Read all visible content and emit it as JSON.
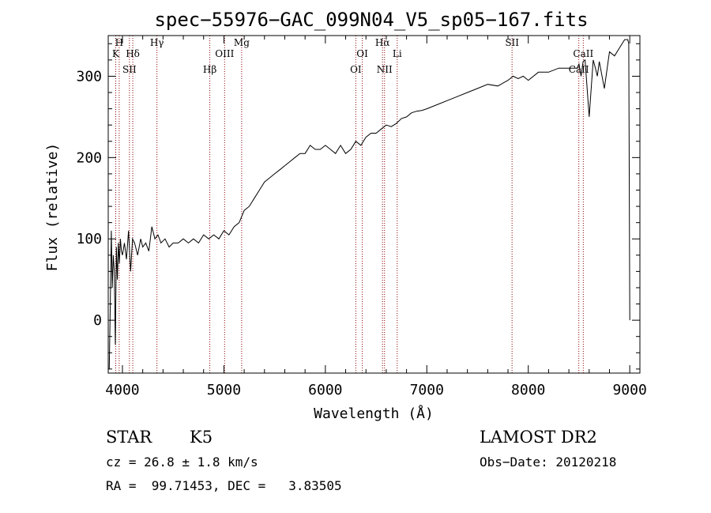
{
  "chart_data": {
    "type": "line",
    "title": "spec−55976−GAC_099N04_V5_sp05−167.fits",
    "xlabel": "Wavelength (Å)",
    "ylabel": "Flux (relative)",
    "xlim": [
      3860,
      9100
    ],
    "ylim": [
      -65,
      350
    ],
    "xticks": [
      4000,
      5000,
      6000,
      7000,
      8000,
      9000
    ],
    "yticks": [
      0,
      100,
      200,
      300
    ],
    "grid": false,
    "series": [
      {
        "x": [
          3870,
          3880,
          3890,
          3900,
          3910,
          3920,
          3930,
          3940,
          3950,
          3960,
          3970,
          3980,
          3990,
          4000,
          4020,
          4040,
          4060,
          4080,
          4100,
          4120,
          4150,
          4180,
          4200,
          4230,
          4260,
          4290,
          4320,
          4350,
          4380,
          4420,
          4460,
          4500,
          4550,
          4600,
          4650,
          4700,
          4750,
          4800,
          4850,
          4900,
          4950,
          5000,
          5050,
          5100,
          5150,
          5200,
          5250,
          5300,
          5350,
          5400,
          5450,
          5500,
          5550,
          5600,
          5650,
          5700,
          5750,
          5800,
          5850,
          5900,
          5950,
          6000,
          6050,
          6100,
          6150,
          6200,
          6250,
          6300,
          6350,
          6400,
          6450,
          6500,
          6550,
          6600,
          6650,
          6700,
          6750,
          6800,
          6850,
          6900,
          6950,
          7000,
          7100,
          7200,
          7300,
          7400,
          7500,
          7600,
          7700,
          7800,
          7850,
          7900,
          7950,
          8000,
          8100,
          8200,
          8300,
          8400,
          8480,
          8500,
          8520,
          8540,
          8560,
          8600,
          8640,
          8662,
          8680,
          8700,
          8750,
          8800,
          8850,
          8900,
          8950,
          8980,
          8990,
          9000
        ],
        "y": [
          -60,
          20,
          110,
          40,
          80,
          60,
          -30,
          90,
          50,
          95,
          70,
          100,
          85,
          80,
          95,
          75,
          110,
          60,
          100,
          95,
          80,
          100,
          90,
          95,
          85,
          115,
          100,
          105,
          95,
          100,
          90,
          95,
          95,
          100,
          95,
          100,
          95,
          105,
          100,
          105,
          100,
          110,
          105,
          115,
          120,
          135,
          140,
          150,
          160,
          170,
          175,
          180,
          185,
          190,
          195,
          200,
          205,
          205,
          215,
          210,
          210,
          215,
          210,
          205,
          215,
          205,
          210,
          220,
          215,
          225,
          230,
          230,
          235,
          240,
          238,
          242,
          248,
          250,
          255,
          257,
          258,
          260,
          265,
          270,
          275,
          280,
          285,
          290,
          288,
          295,
          300,
          297,
          300,
          295,
          305,
          305,
          310,
          310,
          310,
          315,
          300,
          318,
          320,
          250,
          320,
          310,
          300,
          318,
          285,
          330,
          325,
          335,
          345,
          345,
          340,
          0
        ]
      }
    ],
    "lines": [
      {
        "label": "K",
        "wavelength": 3934
      },
      {
        "label": "H",
        "wavelength": 3968
      },
      {
        "label": "SII",
        "wavelength": 4069
      },
      {
        "label": "Hδ",
        "wavelength": 4102
      },
      {
        "label": "Hγ",
        "wavelength": 4340
      },
      {
        "label": "Hβ",
        "wavelength": 4861
      },
      {
        "label": "OIII",
        "wavelength": 5007
      },
      {
        "label": "Mg",
        "wavelength": 5175
      },
      {
        "label": "OI",
        "wavelength": 6300
      },
      {
        "label": "OI",
        "wavelength": 6364
      },
      {
        "label": "Hα",
        "wavelength": 6563
      },
      {
        "label": "NII",
        "wavelength": 6583
      },
      {
        "label": "Li",
        "wavelength": 6708
      },
      {
        "label": "SII",
        "wavelength": 7840
      },
      {
        "label": "CaII",
        "wavelength": 8498
      },
      {
        "label": "CaII",
        "wavelength": 8542
      }
    ]
  },
  "info": {
    "object_class": "STAR",
    "subclass": "K5",
    "cz": "cz = 26.8 ± 1.8 km/s",
    "coords": "RA =  99.71453, DEC =   3.83505",
    "survey": "LAMOST DR2",
    "obs_date": "Obs−Date: 20120218"
  },
  "colors": {
    "spectrum": "#000000",
    "line_marker": "#8b0000",
    "axes": "#000000"
  }
}
